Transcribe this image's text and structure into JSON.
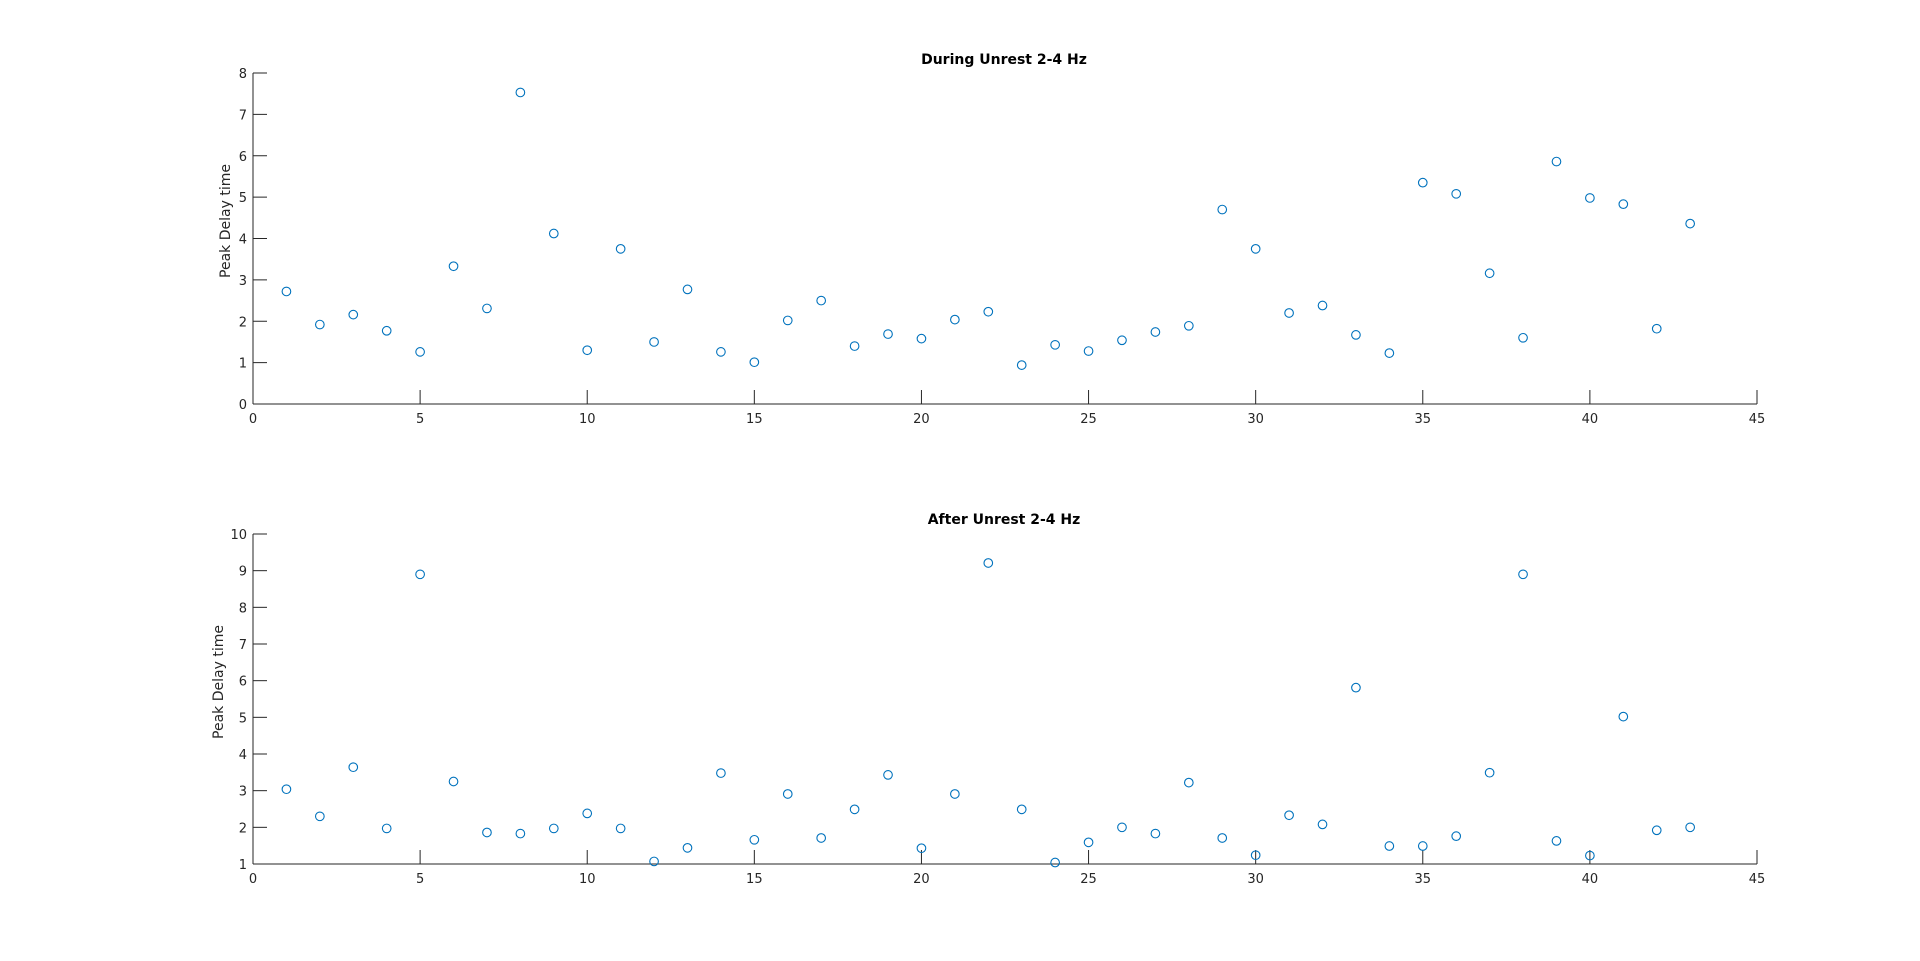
{
  "chart_data": [
    {
      "type": "scatter",
      "title": "During Unrest 2-4 Hz",
      "xlabel": "",
      "ylabel": "Peak Delay time",
      "xlim": [
        0,
        45
      ],
      "ylim": [
        0,
        8
      ],
      "xticks": [
        0,
        5,
        10,
        15,
        20,
        25,
        30,
        35,
        40,
        45
      ],
      "yticks": [
        0,
        1,
        2,
        3,
        4,
        5,
        6,
        7,
        8
      ],
      "marker": "open-circle",
      "color": "#0072bd",
      "x": [
        1,
        2,
        3,
        4,
        5,
        6,
        7,
        8,
        9,
        10,
        11,
        12,
        13,
        14,
        15,
        16,
        17,
        18,
        19,
        20,
        21,
        22,
        23,
        24,
        25,
        26,
        27,
        28,
        29,
        30,
        31,
        32,
        33,
        34,
        35,
        36,
        37,
        38,
        39,
        40,
        41,
        42,
        43
      ],
      "y": [
        2.72,
        1.92,
        2.16,
        1.77,
        1.26,
        3.33,
        2.31,
        7.53,
        4.12,
        1.3,
        3.75,
        1.5,
        2.77,
        1.26,
        1.01,
        2.02,
        2.5,
        1.4,
        1.69,
        1.58,
        2.04,
        2.23,
        0.94,
        1.43,
        1.28,
        1.54,
        1.74,
        1.89,
        4.7,
        3.75,
        2.2,
        2.38,
        1.67,
        1.23,
        5.35,
        5.08,
        3.16,
        1.6,
        5.86,
        4.98,
        4.83,
        1.82,
        4.36
      ]
    },
    {
      "type": "scatter",
      "title": "After Unrest 2-4 Hz",
      "xlabel": "",
      "ylabel": "Peak Delay time",
      "xlim": [
        0,
        45
      ],
      "ylim": [
        1,
        10
      ],
      "xticks": [
        0,
        5,
        10,
        15,
        20,
        25,
        30,
        35,
        40,
        45
      ],
      "yticks": [
        1,
        2,
        3,
        4,
        5,
        6,
        7,
        8,
        9,
        10
      ],
      "marker": "open-circle",
      "color": "#0072bd",
      "x": [
        1,
        2,
        3,
        4,
        5,
        6,
        7,
        8,
        9,
        10,
        11,
        12,
        13,
        14,
        15,
        16,
        17,
        18,
        19,
        20,
        21,
        22,
        23,
        24,
        25,
        26,
        27,
        28,
        29,
        30,
        31,
        32,
        33,
        34,
        35,
        36,
        37,
        38,
        39,
        40,
        41,
        42,
        43
      ],
      "y": [
        3.04,
        2.3,
        3.64,
        1.97,
        8.9,
        3.25,
        1.86,
        1.83,
        1.97,
        2.38,
        1.97,
        1.07,
        1.44,
        3.48,
        1.66,
        2.91,
        1.71,
        2.49,
        3.43,
        1.43,
        2.91,
        9.21,
        2.49,
        1.04,
        1.59,
        2.0,
        1.83,
        3.22,
        1.71,
        1.24,
        2.33,
        2.08,
        5.81,
        1.49,
        1.49,
        1.76,
        3.49,
        8.9,
        1.63,
        1.23,
        5.02,
        1.92,
        2.0
      ]
    }
  ]
}
